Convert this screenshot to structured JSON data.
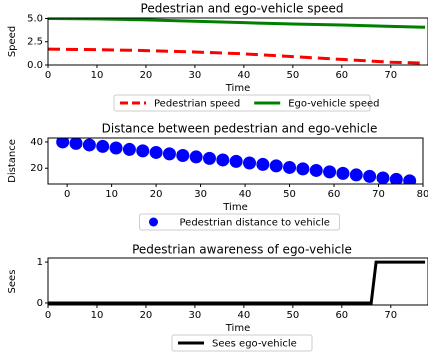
{
  "chart_data": [
    {
      "type": "line",
      "title": "Pedestrian and ego-vehicle speed",
      "xlabel": "Time",
      "ylabel": "Speed",
      "x": [
        0,
        10,
        20,
        30,
        40,
        50,
        60,
        70,
        77
      ],
      "series": [
        {
          "name": "Pedestrian speed",
          "color": "#ff0000",
          "style": "dashed",
          "values": [
            1.7,
            1.65,
            1.55,
            1.4,
            1.2,
            0.9,
            0.6,
            0.3,
            0.2
          ]
        },
        {
          "name": "Ego-vehicle speed",
          "color": "#008000",
          "style": "solid",
          "values": [
            5.0,
            4.95,
            4.85,
            4.7,
            4.55,
            4.4,
            4.3,
            4.15,
            4.05
          ]
        }
      ],
      "xlim": [
        0,
        77.6
      ],
      "xticks": [
        0,
        10,
        20,
        30,
        40,
        50,
        60,
        70
      ],
      "ylim": [
        0,
        5.05
      ],
      "yticks": [
        {
          "value": 0,
          "label": "0.0"
        },
        {
          "value": 2.5,
          "label": "2.5"
        },
        {
          "value": 5,
          "label": "5.0"
        }
      ],
      "legend": "bottom"
    },
    {
      "type": "scatter",
      "title": "Distance between pedestrian and ego-vehicle",
      "xlabel": "Time",
      "ylabel": "Distance",
      "x": [
        -1,
        2,
        5,
        8,
        11,
        14,
        17,
        20,
        23,
        26,
        29,
        32,
        35,
        38,
        41,
        44,
        47,
        50,
        53,
        56,
        59,
        62,
        65,
        68,
        71,
        74,
        77
      ],
      "series": [
        {
          "name": "Pedestrian distance to vehicle",
          "color": "#0000ff",
          "values": [
            40,
            38.9,
            37.7,
            36.6,
            35.4,
            34.3,
            33.2,
            32.0,
            30.9,
            29.7,
            28.6,
            27.5,
            26.3,
            25.2,
            24.0,
            22.9,
            21.8,
            20.6,
            19.5,
            18.3,
            17.2,
            16.1,
            14.9,
            13.8,
            12.6,
            11.5,
            10.4
          ]
        }
      ],
      "xlim": [
        -4.3,
        80
      ],
      "xticks": [
        0,
        10,
        20,
        30,
        40,
        50,
        60,
        70,
        80
      ],
      "ylim": [
        8,
        43
      ],
      "yticks": [
        20,
        40
      ],
      "legend": "bottom"
    },
    {
      "type": "line",
      "title": "Pedestrian awareness of ego-vehicle",
      "xlabel": "Time",
      "ylabel": "Sees",
      "x": [
        0,
        66,
        67,
        77
      ],
      "series": [
        {
          "name": "Sees ego-vehicle",
          "color": "#000000",
          "style": "solid",
          "values": [
            0,
            0,
            1,
            1
          ]
        }
      ],
      "xlim": [
        0,
        77.6
      ],
      "xticks": [
        0,
        10,
        20,
        30,
        40,
        50,
        60,
        70
      ],
      "ylim": [
        -0.05,
        1.1
      ],
      "yticks": [
        0,
        1
      ],
      "legend": "bottom"
    }
  ]
}
